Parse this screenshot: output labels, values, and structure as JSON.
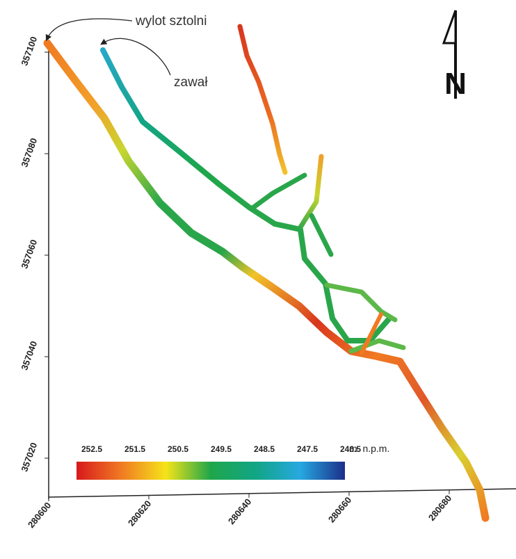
{
  "annotations": {
    "adit": "wylot sztolni",
    "collapse": "zawał"
  },
  "north": "N",
  "x_axis": {
    "ticks": [
      280600,
      280620,
      280640,
      280660,
      280680
    ]
  },
  "y_axis": {
    "ticks": [
      357100,
      357080,
      357060,
      357040,
      357020
    ]
  },
  "legend": {
    "ticks": [
      252.5,
      251.5,
      250.5,
      249.5,
      248.5,
      247.5,
      246.5
    ],
    "unit": "m. n.p.m.",
    "colors": [
      "#d7191c",
      "#f07a22",
      "#f5e41a",
      "#1fa64a",
      "#12a585",
      "#27a8e0",
      "#1b2f8a"
    ]
  }
}
